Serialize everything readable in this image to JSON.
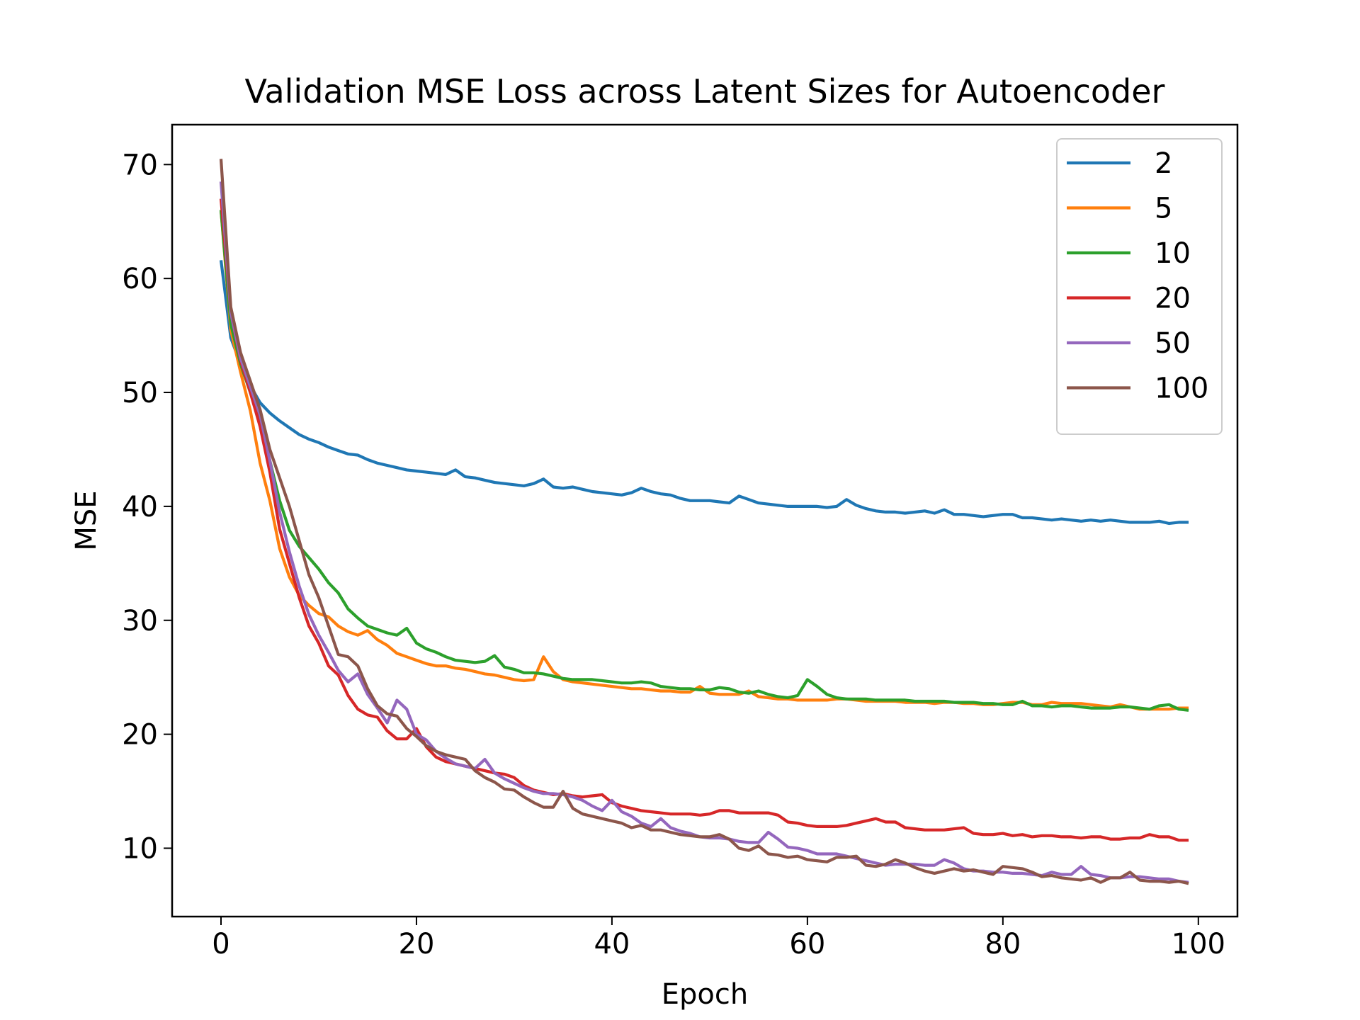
{
  "chart_data": {
    "type": "line",
    "title": "Validation MSE Loss across Latent Sizes for Autoencoder",
    "xlabel": "Epoch",
    "ylabel": "MSE",
    "xlim": [
      -5,
      104
    ],
    "ylim": [
      4,
      73.5
    ],
    "xticks": [
      0,
      20,
      40,
      60,
      80,
      100
    ],
    "yticks": [
      10,
      20,
      30,
      40,
      50,
      60,
      70
    ],
    "grid": false,
    "legend_position": "top-right",
    "x": {
      "start": 0,
      "end": 99,
      "step": 1
    },
    "series": [
      {
        "name": "2",
        "color": "#1f77b4",
        "values": [
          61.6,
          54.8,
          52.5,
          50.6,
          49.1,
          48.2,
          47.5,
          46.9,
          46.3,
          45.9,
          45.6,
          45.2,
          44.9,
          44.6,
          44.5,
          44.1,
          43.8,
          43.6,
          43.4,
          43.2,
          43.1,
          43.0,
          42.9,
          42.8,
          43.2,
          42.6,
          42.5,
          42.3,
          42.1,
          42.0,
          41.9,
          41.8,
          42.0,
          42.4,
          41.7,
          41.6,
          41.7,
          41.5,
          41.3,
          41.2,
          41.1,
          41.0,
          41.2,
          41.6,
          41.3,
          41.1,
          41.0,
          40.7,
          40.5,
          40.5,
          40.5,
          40.4,
          40.3,
          40.9,
          40.6,
          40.3,
          40.2,
          40.1,
          40.0,
          40.0,
          40.0,
          40.0,
          39.9,
          40.0,
          40.6,
          40.1,
          39.8,
          39.6,
          39.5,
          39.5,
          39.4,
          39.5,
          39.6,
          39.4,
          39.7,
          39.3,
          39.3,
          39.2,
          39.1,
          39.2,
          39.3,
          39.3,
          39.0,
          39.0,
          38.9,
          38.8,
          38.9,
          38.8,
          38.7,
          38.8,
          38.7,
          38.8,
          38.7,
          38.6,
          38.6,
          38.6,
          38.7,
          38.5,
          38.6,
          38.6
        ]
      },
      {
        "name": "5",
        "color": "#ff7f0e",
        "values": [
          66.0,
          55.5,
          51.8,
          48.4,
          43.8,
          40.5,
          36.3,
          33.8,
          32.2,
          31.3,
          30.6,
          30.3,
          29.5,
          29.0,
          28.7,
          29.1,
          28.3,
          27.8,
          27.1,
          26.8,
          26.5,
          26.2,
          26.0,
          26.0,
          25.8,
          25.7,
          25.5,
          25.3,
          25.2,
          25.0,
          24.8,
          24.7,
          24.8,
          26.8,
          25.5,
          24.8,
          24.6,
          24.5,
          24.4,
          24.3,
          24.2,
          24.1,
          24.0,
          24.0,
          23.9,
          23.8,
          23.8,
          23.7,
          23.7,
          24.2,
          23.6,
          23.5,
          23.5,
          23.5,
          23.8,
          23.3,
          23.2,
          23.1,
          23.1,
          23.0,
          23.0,
          23.0,
          23.0,
          23.1,
          23.1,
          23.0,
          22.9,
          22.9,
          22.9,
          22.9,
          22.8,
          22.8,
          22.8,
          22.7,
          22.8,
          22.8,
          22.7,
          22.7,
          22.6,
          22.6,
          22.7,
          22.8,
          22.8,
          22.6,
          22.6,
          22.8,
          22.7,
          22.7,
          22.7,
          22.6,
          22.5,
          22.4,
          22.6,
          22.4,
          22.2,
          22.2,
          22.2,
          22.2,
          22.3,
          22.3
        ]
      },
      {
        "name": "10",
        "color": "#2ca02c",
        "values": [
          66.0,
          56.0,
          52.5,
          50.0,
          47.5,
          44.0,
          40.5,
          37.9,
          36.5,
          35.5,
          34.5,
          33.3,
          32.4,
          31.0,
          30.2,
          29.5,
          29.2,
          28.9,
          28.7,
          29.3,
          28.0,
          27.5,
          27.2,
          26.8,
          26.5,
          26.4,
          26.3,
          26.4,
          26.9,
          25.9,
          25.7,
          25.4,
          25.4,
          25.3,
          25.1,
          24.9,
          24.8,
          24.8,
          24.8,
          24.7,
          24.6,
          24.5,
          24.5,
          24.6,
          24.5,
          24.2,
          24.1,
          24.0,
          24.0,
          23.9,
          23.9,
          24.1,
          24.0,
          23.7,
          23.6,
          23.8,
          23.5,
          23.3,
          23.2,
          23.4,
          24.8,
          24.2,
          23.5,
          23.2,
          23.1,
          23.1,
          23.1,
          23.0,
          23.0,
          23.0,
          23.0,
          22.9,
          22.9,
          22.9,
          22.9,
          22.8,
          22.8,
          22.8,
          22.7,
          22.7,
          22.6,
          22.6,
          22.9,
          22.5,
          22.5,
          22.4,
          22.5,
          22.5,
          22.4,
          22.3,
          22.3,
          22.3,
          22.4,
          22.4,
          22.3,
          22.2,
          22.5,
          22.6,
          22.2,
          22.1
        ]
      },
      {
        "name": "20",
        "color": "#d62728",
        "values": [
          67.0,
          57.0,
          52.8,
          50.0,
          47.0,
          43.0,
          38.0,
          35.0,
          32.0,
          29.5,
          28.0,
          26.0,
          25.2,
          23.4,
          22.2,
          21.7,
          21.5,
          20.3,
          19.6,
          19.6,
          20.5,
          18.9,
          18.0,
          17.6,
          17.4,
          17.2,
          17.0,
          16.8,
          16.6,
          16.5,
          16.2,
          15.5,
          15.1,
          14.9,
          14.7,
          14.8,
          14.6,
          14.5,
          14.6,
          14.7,
          14.0,
          13.7,
          13.5,
          13.3,
          13.2,
          13.1,
          13.0,
          13.0,
          13.0,
          12.9,
          13.0,
          13.3,
          13.3,
          13.1,
          13.1,
          13.1,
          13.1,
          12.9,
          12.3,
          12.2,
          12.0,
          11.9,
          11.9,
          11.9,
          12.0,
          12.2,
          12.4,
          12.6,
          12.3,
          12.3,
          11.8,
          11.7,
          11.6,
          11.6,
          11.6,
          11.7,
          11.8,
          11.3,
          11.2,
          11.2,
          11.3,
          11.1,
          11.2,
          11.0,
          11.1,
          11.1,
          11.0,
          11.0,
          10.9,
          11.0,
          11.0,
          10.8,
          10.8,
          10.9,
          10.9,
          11.2,
          11.0,
          11.0,
          10.7,
          10.7
        ]
      },
      {
        "name": "50",
        "color": "#9467bd",
        "values": [
          68.5,
          57.0,
          53.0,
          50.5,
          48.0,
          44.0,
          39.5,
          36.0,
          33.0,
          30.5,
          28.7,
          27.2,
          25.6,
          24.6,
          25.3,
          23.5,
          22.3,
          21.0,
          23.0,
          22.2,
          20.0,
          19.5,
          18.5,
          17.9,
          17.4,
          17.2,
          17.0,
          17.8,
          16.6,
          16.1,
          15.7,
          15.3,
          15.0,
          14.8,
          14.8,
          14.7,
          14.5,
          14.2,
          13.7,
          13.3,
          14.2,
          13.2,
          12.8,
          12.2,
          11.9,
          12.6,
          11.8,
          11.5,
          11.3,
          11.0,
          10.9,
          10.9,
          10.8,
          10.6,
          10.5,
          10.5,
          11.4,
          10.8,
          10.1,
          10.0,
          9.8,
          9.5,
          9.5,
          9.5,
          9.3,
          9.1,
          8.9,
          8.7,
          8.5,
          8.6,
          8.6,
          8.6,
          8.5,
          8.5,
          9.0,
          8.7,
          8.2,
          8.0,
          8.0,
          7.9,
          7.9,
          7.8,
          7.8,
          7.7,
          7.6,
          7.9,
          7.7,
          7.7,
          8.4,
          7.7,
          7.6,
          7.4,
          7.4,
          7.5,
          7.5,
          7.4,
          7.3,
          7.3,
          7.1,
          7.0
        ]
      },
      {
        "name": "100",
        "color": "#8c564b",
        "values": [
          70.5,
          57.5,
          53.5,
          51.0,
          48.5,
          45.0,
          42.5,
          40.0,
          37.0,
          34.0,
          32.0,
          29.5,
          27.0,
          26.8,
          26.0,
          24.0,
          22.5,
          21.8,
          21.6,
          20.5,
          19.8,
          19.0,
          18.5,
          18.2,
          18.0,
          17.8,
          16.8,
          16.2,
          15.8,
          15.2,
          15.1,
          14.5,
          14.0,
          13.6,
          13.6,
          15.0,
          13.5,
          13.0,
          12.8,
          12.6,
          12.4,
          12.2,
          11.8,
          12.0,
          11.6,
          11.6,
          11.4,
          11.2,
          11.1,
          11.0,
          11.0,
          11.2,
          10.8,
          10.0,
          9.8,
          10.2,
          9.5,
          9.4,
          9.2,
          9.3,
          9.0,
          8.9,
          8.8,
          9.2,
          9.2,
          9.3,
          8.5,
          8.4,
          8.6,
          9.0,
          8.7,
          8.3,
          8.0,
          7.8,
          8.0,
          8.2,
          8.0,
          8.1,
          7.9,
          7.7,
          8.4,
          8.3,
          8.2,
          7.9,
          7.5,
          7.6,
          7.4,
          7.3,
          7.2,
          7.4,
          7.0,
          7.4,
          7.4,
          7.9,
          7.2,
          7.1,
          7.1,
          7.0,
          7.1,
          6.9
        ]
      }
    ]
  }
}
